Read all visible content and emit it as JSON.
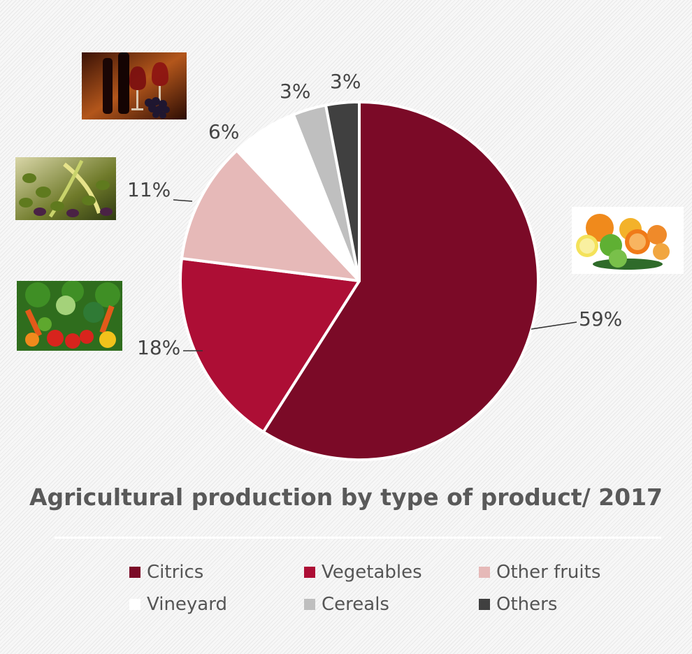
{
  "chart_data": {
    "type": "pie",
    "title": "Agricultural production by type of product/ 2017",
    "slices": [
      {
        "name": "Citrics",
        "value": 59,
        "label": "59%",
        "color": "#7b0a27"
      },
      {
        "name": "Vegetables",
        "value": 18,
        "label": "18%",
        "color": "#ad0e35"
      },
      {
        "name": "Other fruits",
        "value": 11,
        "label": "11%",
        "color": "#e6b9b8"
      },
      {
        "name": "Vineyard",
        "value": 6,
        "label": "6%",
        "color": "#ffffff"
      },
      {
        "name": "Cereals",
        "value": 3,
        "label": "3%",
        "color": "#bfbfbf"
      },
      {
        "name": "Others",
        "value": 3,
        "label": "3%",
        "color": "#404040"
      }
    ],
    "legend_position": "bottom"
  },
  "images": [
    {
      "name": "wine-grapes-photo-icon",
      "depicts": "wine bottles, glasses and grapes"
    },
    {
      "name": "olives-photo-icon",
      "depicts": "olives and olive leaves"
    },
    {
      "name": "citrus-photo-icon",
      "depicts": "oranges, lemons and limes"
    },
    {
      "name": "vegetables-photo-icon",
      "depicts": "assorted vegetables"
    }
  ]
}
